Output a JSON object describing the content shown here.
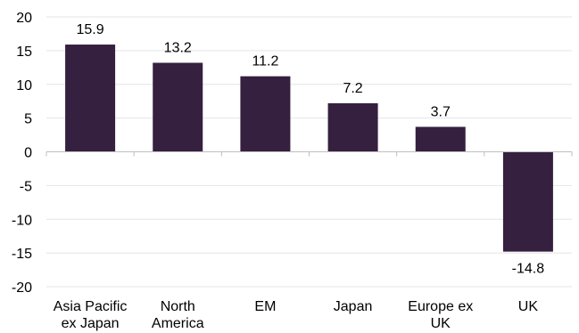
{
  "chart_data": {
    "type": "bar",
    "title": "",
    "xlabel": "",
    "ylabel": "",
    "categories": [
      [
        "Asia Pacific",
        "ex Japan"
      ],
      [
        "North",
        "America"
      ],
      [
        "EM"
      ],
      [
        "Japan"
      ],
      [
        "Europe ex",
        "UK"
      ],
      [
        "UK"
      ]
    ],
    "values": [
      15.9,
      13.2,
      11.2,
      7.2,
      3.7,
      -14.8
    ],
    "value_labels": [
      "15.9",
      "13.2",
      "11.2",
      "7.2",
      "3.7",
      "-14.8"
    ],
    "ylim": [
      -20,
      20
    ],
    "yticks": [
      20,
      15,
      10,
      5,
      0,
      -5,
      -10,
      -15,
      -20
    ],
    "grid": true,
    "legend": "none",
    "bar_color": "#35203f",
    "grid_color": "#e4e4e4",
    "axis_color": "#bfbfbf"
  }
}
